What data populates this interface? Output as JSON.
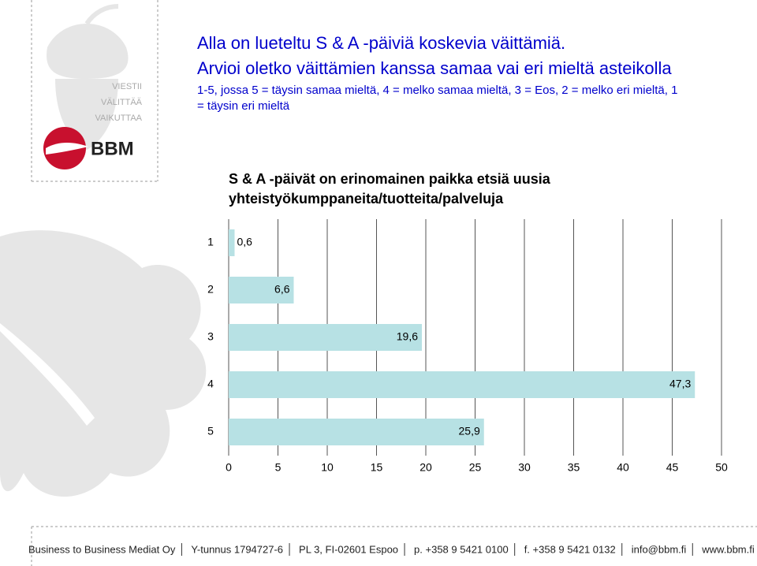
{
  "header": {
    "lines": [
      "Alla on lueteltu S & A -päiviä koskevia väittämiä.",
      "Arvioi oletko väittämien kanssa samaa vai eri mieltä asteikolla"
    ],
    "instructions": [
      "1-5, jossa 5 = täysin samaa mieltä, 4 = melko samaa mieltä, 3 = Eos, 2 = melko eri mieltä, 1",
      "= täysin eri mieltä"
    ]
  },
  "logo": {
    "tagline": [
      "VIESTII",
      "VÄLITTÄÄ",
      "VAIKUTTAA"
    ],
    "name": "BBM"
  },
  "chart_data": {
    "type": "bar",
    "orientation": "horizontal",
    "title": [
      "S & A -päivät on erinomainen paikka etsiä uusia",
      "yhteistyökumppaneita/tuotteita/palveluja"
    ],
    "categories": [
      "1",
      "2",
      "3",
      "4",
      "5"
    ],
    "values": [
      0.6,
      6.6,
      19.6,
      47.3,
      25.9
    ],
    "value_labels": [
      "0,6",
      "6,6",
      "19,6",
      "47,3",
      "25,9"
    ],
    "color": "#b7e1e4",
    "xlim": [
      0,
      50
    ],
    "xticks": [
      0,
      5,
      10,
      15,
      20,
      25,
      30,
      35,
      40,
      45,
      50
    ],
    "grid": true
  },
  "footer": [
    "Business to Business Mediat Oy",
    "Y-tunnus 1794727-6",
    "PL 3, FI-02601 Espoo",
    "p. +358 9 5421 0100",
    "f. +358 9 5421 0132",
    "info@bbm.fi",
    "www.bbm.fi"
  ]
}
